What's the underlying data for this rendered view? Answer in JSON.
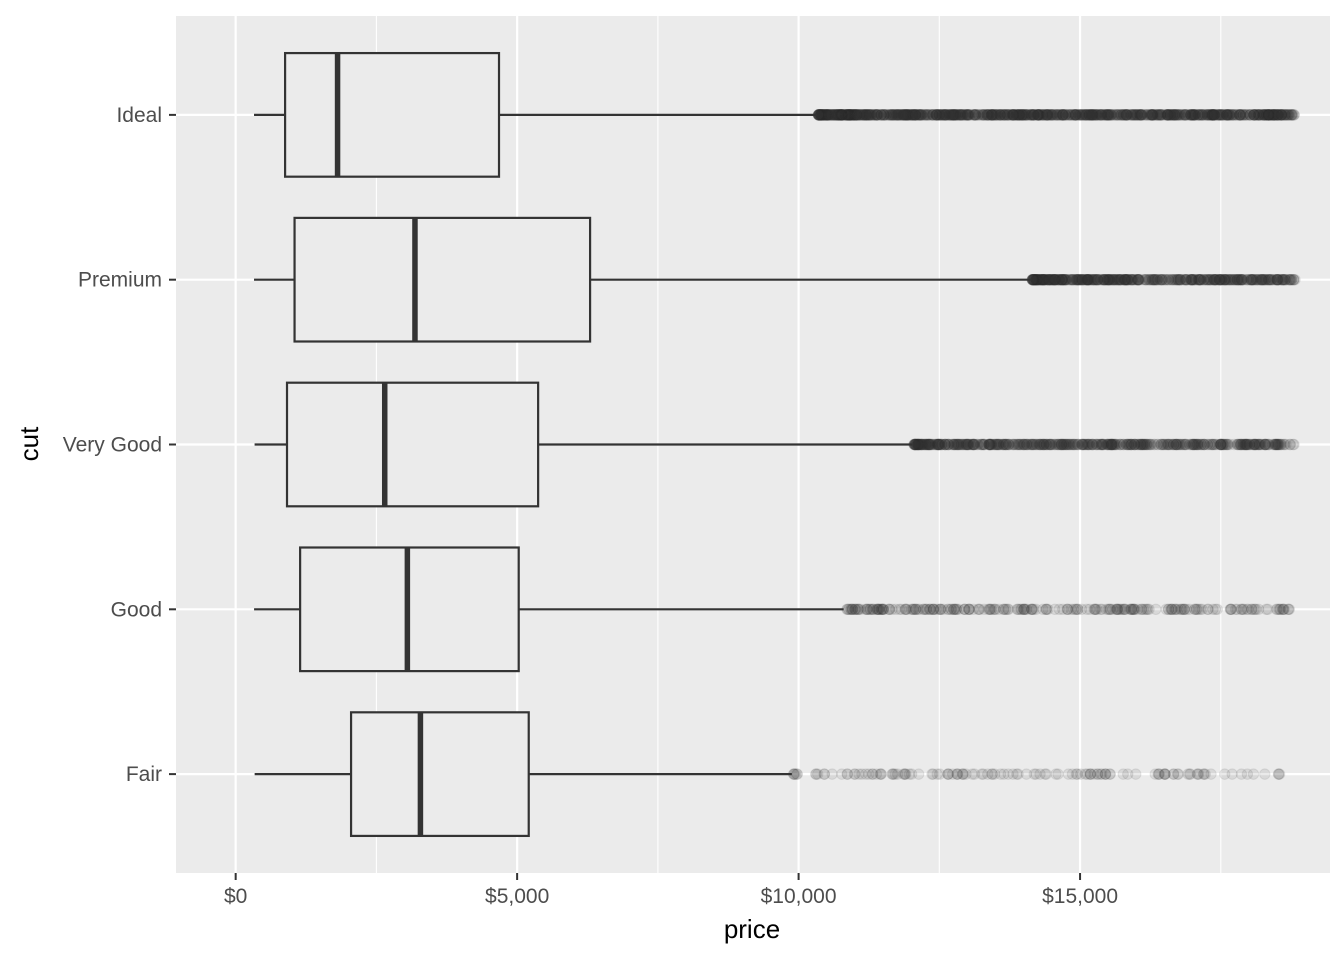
{
  "chart_data": {
    "type": "boxplot",
    "orientation": "horizontal",
    "title": "",
    "xlabel": "price",
    "ylabel": "cut",
    "xlim": [
      -1060,
      19440
    ],
    "x_ticks": [
      0,
      5000,
      10000,
      15000
    ],
    "x_tick_labels": [
      "$0",
      "$5,000",
      "$10,000",
      "$15,000"
    ],
    "grid": true,
    "legend": "none",
    "outlier_alpha": 0.1,
    "categories": [
      "Fair",
      "Good",
      "Very Good",
      "Premium",
      "Ideal"
    ],
    "boxes": [
      {
        "category": "Fair",
        "min": 337,
        "q1": 2050,
        "median": 3282,
        "q3": 5206,
        "max": 9880,
        "outliers_from": 9900,
        "outliers_to": 18574,
        "outlier_count": 130
      },
      {
        "category": "Good",
        "min": 327,
        "q1": 1145,
        "median": 3050,
        "q3": 5028,
        "max": 10800,
        "outliers_from": 10850,
        "outliers_to": 18788,
        "outlier_count": 260
      },
      {
        "category": "Very Good",
        "min": 336,
        "q1": 912,
        "median": 2648,
        "q3": 5373,
        "max": 12020,
        "outliers_from": 12050,
        "outliers_to": 18818,
        "outlier_count": 650
      },
      {
        "category": "Premium",
        "min": 326,
        "q1": 1046,
        "median": 3185,
        "q3": 6296,
        "max": 14140,
        "outliers_from": 14150,
        "outliers_to": 18823,
        "outlier_count": 550
      },
      {
        "category": "Ideal",
        "min": 326,
        "q1": 878,
        "median": 1810,
        "q3": 4678,
        "max": 10330,
        "outliers_from": 10350,
        "outliers_to": 18806,
        "outlier_count": 1250
      }
    ],
    "colors": {
      "panel_background": "#ebebeb",
      "grid": "#ffffff",
      "box_line": "#333333",
      "box_fill": "#ebebeb",
      "outlier": "#333333",
      "tick_text": "#4d4d4d",
      "axis_title": "#000000"
    }
  }
}
